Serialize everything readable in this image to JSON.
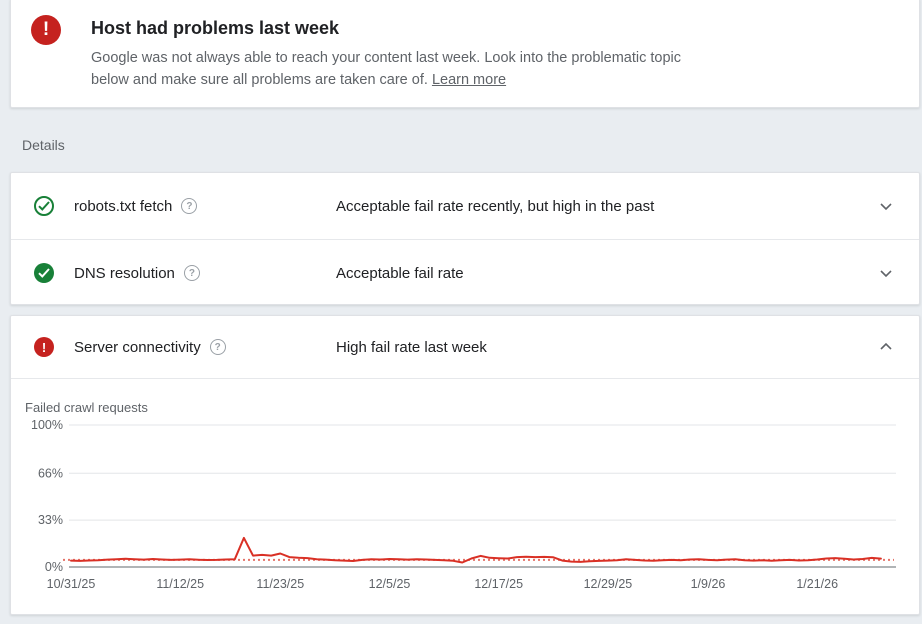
{
  "alert": {
    "title": "Host had problems last week",
    "description": "Google was not always able to reach your content last week. Look into the problematic topic below and make sure all problems are taken care of. ",
    "learn_more_label": "Learn more",
    "icon": "error-exclamation-icon"
  },
  "details_label": "Details",
  "rows": [
    {
      "label": "robots.txt fetch",
      "status": "Acceptable fail rate recently, but high in the past",
      "icon": "check-circle-outline-green",
      "expanded": false
    },
    {
      "label": "DNS resolution",
      "status": "Acceptable fail rate",
      "icon": "check-circle-filled-green",
      "expanded": false
    },
    {
      "label": "Server connectivity",
      "status": "High fail rate last week",
      "icon": "error-circle-filled-red",
      "expanded": true
    }
  ],
  "colors": {
    "error_red": "#c5221f",
    "success_green": "#188038",
    "background": "#e9edf1",
    "text_secondary": "#5f6368"
  },
  "chart_data": {
    "type": "line",
    "title": "Failed crawl requests",
    "series_name": "Failed crawl requests (%)",
    "ylim": [
      0,
      100
    ],
    "grid": true,
    "legend_position": "none",
    "line_color": "#d93025",
    "threshold_color": "#e57368",
    "threshold_pct": 5,
    "threshold_style": "dotted",
    "y_ticks": [
      {
        "label": "100%",
        "pct": 100
      },
      {
        "label": "66%",
        "pct": 66
      },
      {
        "label": "33%",
        "pct": 33
      },
      {
        "label": "0%",
        "pct": 0
      }
    ],
    "x_ticks": [
      {
        "label": "10/31/25",
        "day": 0
      },
      {
        "label": "11/12/25",
        "day": 12
      },
      {
        "label": "11/23/25",
        "day": 23
      },
      {
        "label": "12/5/25",
        "day": 35
      },
      {
        "label": "12/17/25",
        "day": 47
      },
      {
        "label": "12/29/25",
        "day": 59
      },
      {
        "label": "1/9/26",
        "day": 70
      },
      {
        "label": "1/21/26",
        "day": 82
      }
    ],
    "values": [
      4.5,
      4.3,
      4.6,
      4.8,
      5.2,
      5.5,
      5.8,
      5.4,
      5.2,
      5.6,
      5.3,
      5.0,
      5.2,
      5.4,
      5.1,
      4.9,
      5.0,
      5.3,
      5.5,
      20.5,
      8.0,
      8.5,
      8.0,
      9.5,
      7.0,
      6.5,
      6.3,
      5.5,
      5.2,
      4.8,
      4.5,
      4.2,
      5.0,
      5.5,
      5.3,
      5.6,
      5.4,
      5.2,
      5.5,
      5.3,
      5.0,
      4.7,
      4.4,
      3.2,
      6.0,
      7.8,
      6.5,
      6.2,
      6.0,
      7.0,
      7.2,
      7.0,
      7.1,
      6.8,
      4.5,
      3.8,
      3.6,
      4.0,
      4.3,
      4.5,
      4.8,
      5.5,
      5.0,
      4.6,
      4.4,
      4.7,
      5.0,
      4.7,
      5.3,
      5.5,
      5.0,
      4.7,
      5.2,
      5.4,
      4.8,
      4.5,
      4.7,
      4.4,
      4.7,
      5.0,
      4.6,
      4.8,
      5.3,
      6.0,
      6.3,
      5.8,
      5.3,
      5.6,
      6.4,
      5.9
    ]
  }
}
